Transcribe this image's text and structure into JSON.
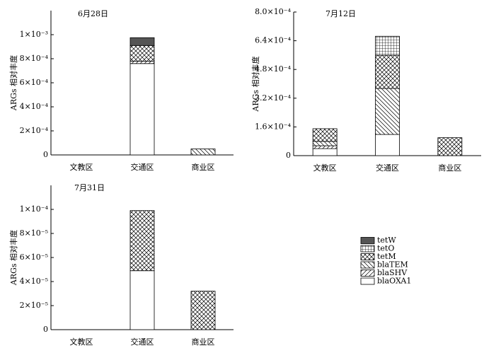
{
  "legend": [
    {
      "name": "tetW",
      "color": "#555555",
      "pattern": "solid"
    },
    {
      "name": "tetO",
      "color": "#000000",
      "pattern": "grid"
    },
    {
      "name": "tetM",
      "color": "#000000",
      "pattern": "crosshatch"
    },
    {
      "name": "blaTEM",
      "color": "#000000",
      "pattern": "backslash"
    },
    {
      "name": "blaSHV",
      "color": "#000000",
      "pattern": "slash"
    },
    {
      "name": "blaOXA1",
      "color": "#000000",
      "pattern": "none"
    }
  ],
  "chart_data": [
    {
      "type": "stacked-bar",
      "title": "6月28日",
      "ylabel": "ARGs 相对丰度",
      "categories": [
        "文教区",
        "交通区",
        "商业区"
      ],
      "ylim": [
        0,
        0.0012
      ],
      "yticks": [
        0,
        {
          "value": 0.0002,
          "label": "2×10⁻⁴"
        },
        {
          "value": 0.0004,
          "label": "4×10⁻⁴"
        },
        {
          "value": 0.0006,
          "label": "6×10⁻⁴"
        },
        {
          "value": 0.0008,
          "label": "8×10⁻⁴"
        },
        {
          "value": 0.001,
          "label": "1×10⁻³"
        }
      ],
      "series": [
        {
          "values": [
            0,
            6.5e-05,
            0
          ]
        },
        {
          "values": [
            0,
            0,
            0
          ]
        },
        {
          "values": [
            0,
            0.00013,
            0
          ]
        },
        {
          "values": [
            0,
            0,
            5e-05
          ]
        },
        {
          "values": [
            0,
            2e-05,
            0
          ]
        },
        {
          "values": [
            0,
            0.00076,
            0
          ]
        }
      ]
    },
    {
      "type": "stacked-bar",
      "title": "7月12日",
      "ylabel": "ARGs 相对丰度",
      "categories": [
        "文教区",
        "交通区",
        "商业区"
      ],
      "ylim": [
        0,
        0.0008
      ],
      "yticks": [
        0,
        {
          "value": 0.00016,
          "label": "1.6×10⁻⁴"
        },
        {
          "value": 0.00032,
          "label": "3.2×10⁻⁴"
        },
        {
          "value": 0.00048,
          "label": "4.8×10⁻⁴"
        },
        {
          "value": 0.00064,
          "label": "6.4×10⁻⁴"
        },
        {
          "value": 0.0008,
          "label": "8.0×10⁻⁴"
        }
      ],
      "series": [
        {
          "values": [
            0,
            0,
            0
          ]
        },
        {
          "values": [
            0,
            0.000106,
            0
          ]
        },
        {
          "values": [
            7.1e-05,
            0.000185,
            0.0001
          ]
        },
        {
          "values": [
            2.4e-05,
            0.000256,
            0
          ]
        },
        {
          "values": [
            1.6e-05,
            0,
            0
          ]
        },
        {
          "values": [
            3.9e-05,
            0.000118,
            0
          ]
        }
      ]
    },
    {
      "type": "stacked-bar",
      "title": "7月31日",
      "ylabel": "ARGs 相对丰度",
      "categories": [
        "文教区",
        "交通区",
        "商业区"
      ],
      "ylim": [
        0,
        0.00012
      ],
      "yticks": [
        0,
        {
          "value": 2e-05,
          "label": "2×10⁻⁵"
        },
        {
          "value": 4e-05,
          "label": "4×10⁻⁵"
        },
        {
          "value": 6e-05,
          "label": "6×10⁻⁵"
        },
        {
          "value": 8e-05,
          "label": "8×10⁻⁵"
        },
        {
          "value": 0.0001,
          "label": "1×10⁻⁴"
        }
      ],
      "series": [
        {
          "values": [
            0,
            0,
            0
          ]
        },
        {
          "values": [
            0,
            0,
            0
          ]
        },
        {
          "values": [
            0,
            5e-05,
            3.2e-05
          ]
        },
        {
          "values": [
            0,
            0,
            0
          ]
        },
        {
          "values": [
            0,
            0,
            0
          ]
        },
        {
          "values": [
            0,
            4.9e-05,
            0
          ]
        }
      ]
    }
  ]
}
